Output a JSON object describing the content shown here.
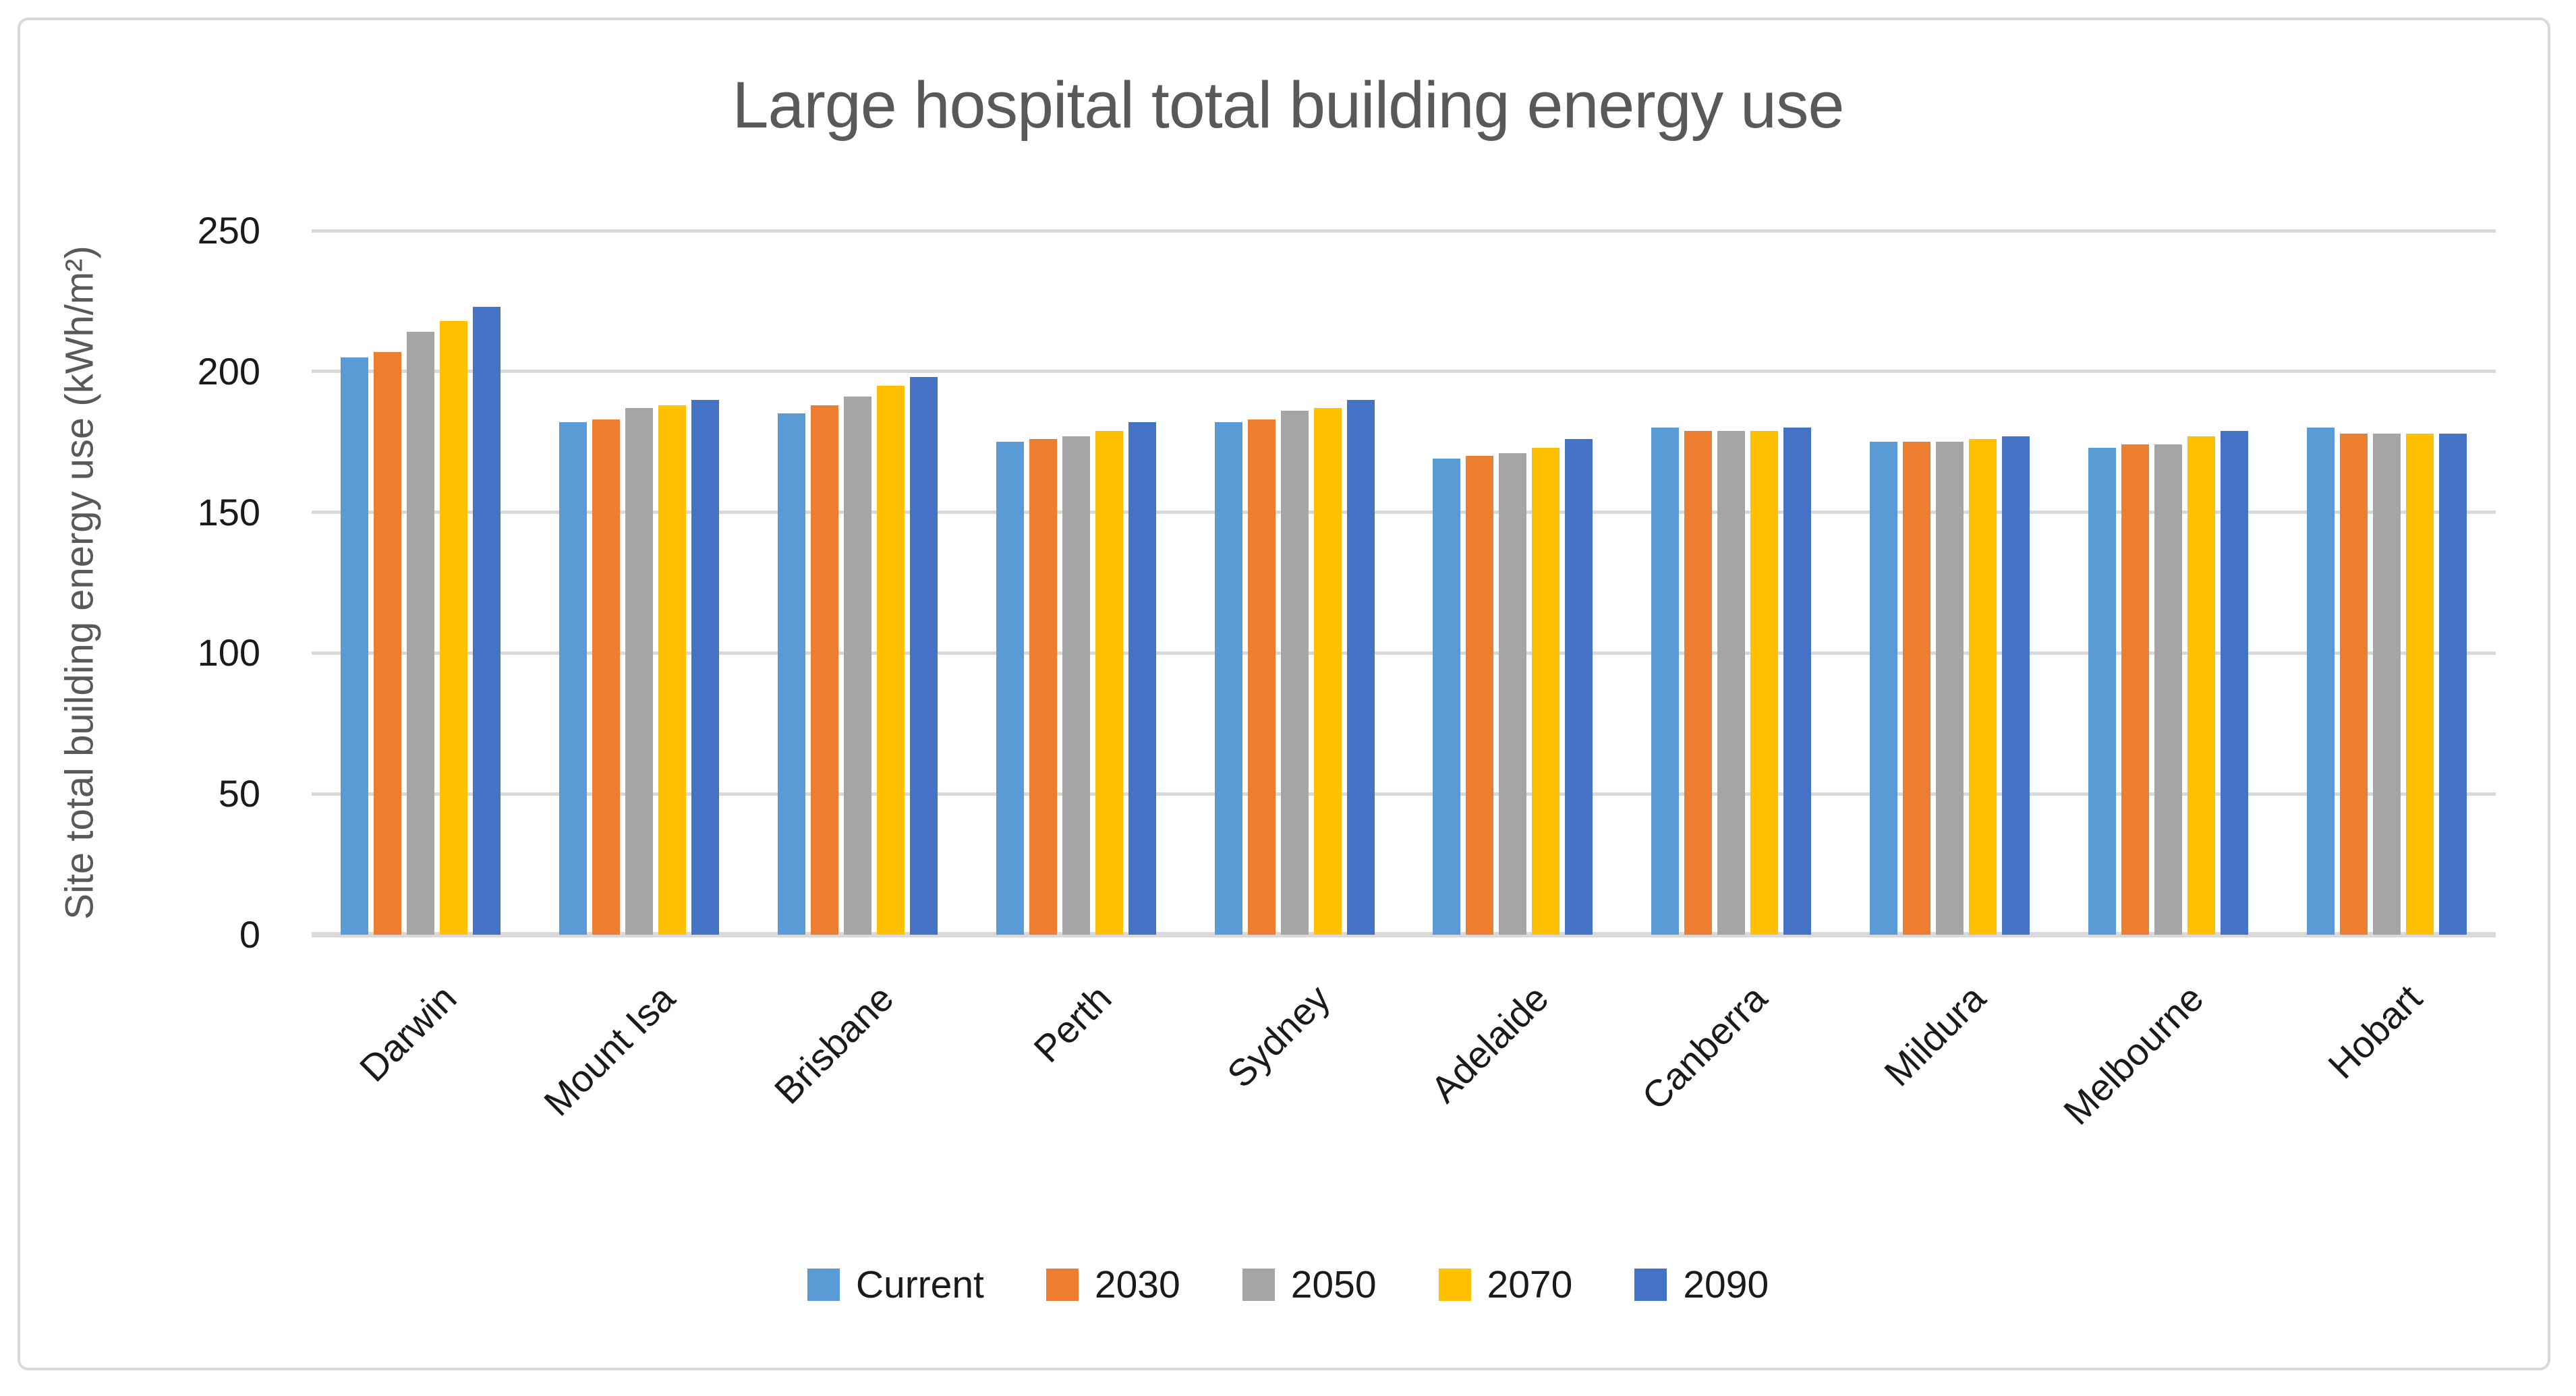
{
  "chart_data": {
    "type": "bar",
    "title": "Large hospital total building energy use",
    "ylabel": "Site total building energy use (kWh/m²)",
    "xlabel": "",
    "ylim": [
      0,
      250
    ],
    "yticks": [
      0,
      50,
      100,
      150,
      200,
      250
    ],
    "grid": true,
    "legend_position": "bottom",
    "categories": [
      "Darwin",
      "Mount Isa",
      "Brisbane",
      "Perth",
      "Sydney",
      "Adelaide",
      "Canberra",
      "Mildura",
      "Melbourne",
      "Hobart"
    ],
    "series": [
      {
        "name": "Current",
        "color": "#5B9BD5",
        "values": [
          205,
          182,
          185,
          175,
          182,
          169,
          180,
          175,
          173,
          180
        ]
      },
      {
        "name": "2030",
        "color": "#ED7D31",
        "values": [
          207,
          183,
          188,
          176,
          183,
          170,
          179,
          175,
          174,
          178
        ]
      },
      {
        "name": "2050",
        "color": "#A5A5A5",
        "values": [
          214,
          187,
          191,
          177,
          186,
          171,
          179,
          175,
          174,
          178
        ]
      },
      {
        "name": "2070",
        "color": "#FFC000",
        "values": [
          218,
          188,
          195,
          179,
          187,
          173,
          179,
          176,
          177,
          178
        ]
      },
      {
        "name": "2090",
        "color": "#4472C4",
        "values": [
          223,
          190,
          198,
          182,
          190,
          176,
          180,
          177,
          179,
          178
        ]
      }
    ],
    "colors": {
      "gridline": "#D9D9D9",
      "axis_line": "#D9D9D9",
      "title_text": "#595959",
      "tick_text": "#1a1a1a",
      "border": "#D9D9D9"
    }
  }
}
